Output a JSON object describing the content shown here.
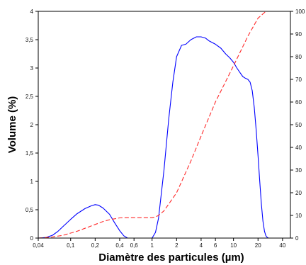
{
  "chart_data": {
    "type": "line",
    "title": "",
    "xlabel": "Diamètre des particules (µm)",
    "ylabel": "Volume (%)",
    "x_scale": "log",
    "xlim": [
      0.04,
      50
    ],
    "ylim": [
      0,
      4
    ],
    "y2lim": [
      0,
      100
    ],
    "grid": false,
    "legend": "none",
    "x_ticks": [
      "0,04",
      "0,1",
      "0,2",
      "0,4",
      "0,6",
      "1",
      "2",
      "4",
      "6",
      "10",
      "20",
      "40"
    ],
    "x_tick_values": [
      0.04,
      0.1,
      0.2,
      0.4,
      0.6,
      1,
      2,
      4,
      6,
      10,
      20,
      40
    ],
    "y_ticks": [
      "0",
      "0,5",
      "1",
      "1,5",
      "2",
      "2,5",
      "3",
      "3,5",
      "4"
    ],
    "y_tick_values": [
      0,
      0.5,
      1,
      1.5,
      2,
      2.5,
      3,
      3.5,
      4
    ],
    "y2_ticks": [
      "0",
      "10",
      "20",
      "30",
      "40",
      "50",
      "60",
      "70",
      "80",
      "90",
      "100"
    ],
    "y2_tick_values": [
      0,
      10,
      20,
      30,
      40,
      50,
      60,
      70,
      80,
      90,
      100
    ],
    "series": [
      {
        "axis": "left",
        "color": "#0000ff",
        "style": "solid",
        "x": [
          0.04,
          0.05,
          0.06,
          0.07,
          0.08,
          0.1,
          0.12,
          0.15,
          0.18,
          0.2,
          0.22,
          0.25,
          0.3,
          0.35,
          0.4,
          0.45,
          0.5,
          0.55,
          0.8,
          0.9,
          1.0,
          1.1,
          1.2,
          1.4,
          1.6,
          1.8,
          2.0,
          2.3,
          2.6,
          3.0,
          3.5,
          4.0,
          4.5,
          5.0,
          6.0,
          7.0,
          8.0,
          9.0,
          10.0,
          11.0,
          12.0,
          13.0,
          14.0,
          15.0,
          16.0,
          17.0,
          18.0,
          19.0,
          20.0,
          21.0,
          22.0,
          23.0,
          24.0,
          25.0,
          26.0,
          27.0,
          28.0,
          30.0
        ],
        "y": [
          0.0,
          0.01,
          0.05,
          0.12,
          0.2,
          0.33,
          0.43,
          0.52,
          0.57,
          0.59,
          0.58,
          0.53,
          0.42,
          0.26,
          0.13,
          0.04,
          0.0,
          0.0,
          0.0,
          0.0,
          0.0,
          0.1,
          0.35,
          1.2,
          2.1,
          2.75,
          3.2,
          3.4,
          3.42,
          3.5,
          3.55,
          3.55,
          3.53,
          3.48,
          3.42,
          3.35,
          3.25,
          3.18,
          3.1,
          3.0,
          2.92,
          2.85,
          2.82,
          2.8,
          2.75,
          2.6,
          2.3,
          1.9,
          1.45,
          1.0,
          0.6,
          0.3,
          0.12,
          0.04,
          0.01,
          0.0,
          0.0,
          0.0
        ]
      },
      {
        "axis": "right",
        "color": "#ff2a2a",
        "style": "dashed",
        "x": [
          0.04,
          0.06,
          0.08,
          0.1,
          0.12,
          0.15,
          0.2,
          0.25,
          0.3,
          0.4,
          0.5,
          0.6,
          0.8,
          1.0,
          1.1,
          1.2,
          1.4,
          1.6,
          2.0,
          3.0,
          4.0,
          6.0,
          10.0,
          15.0,
          20.0,
          25.0,
          30.0,
          40.0,
          50.0
        ],
        "y": [
          0.0,
          0.5,
          1.2,
          2.2,
          3.0,
          4.3,
          6.0,
          7.3,
          8.1,
          8.9,
          9.0,
          9.0,
          9.0,
          9.0,
          9.3,
          10.0,
          12.0,
          15.0,
          20.0,
          34.0,
          45.0,
          60.0,
          76.0,
          89.0,
          97.0,
          100.0,
          100.0,
          100.0,
          100.0
        ]
      }
    ]
  }
}
